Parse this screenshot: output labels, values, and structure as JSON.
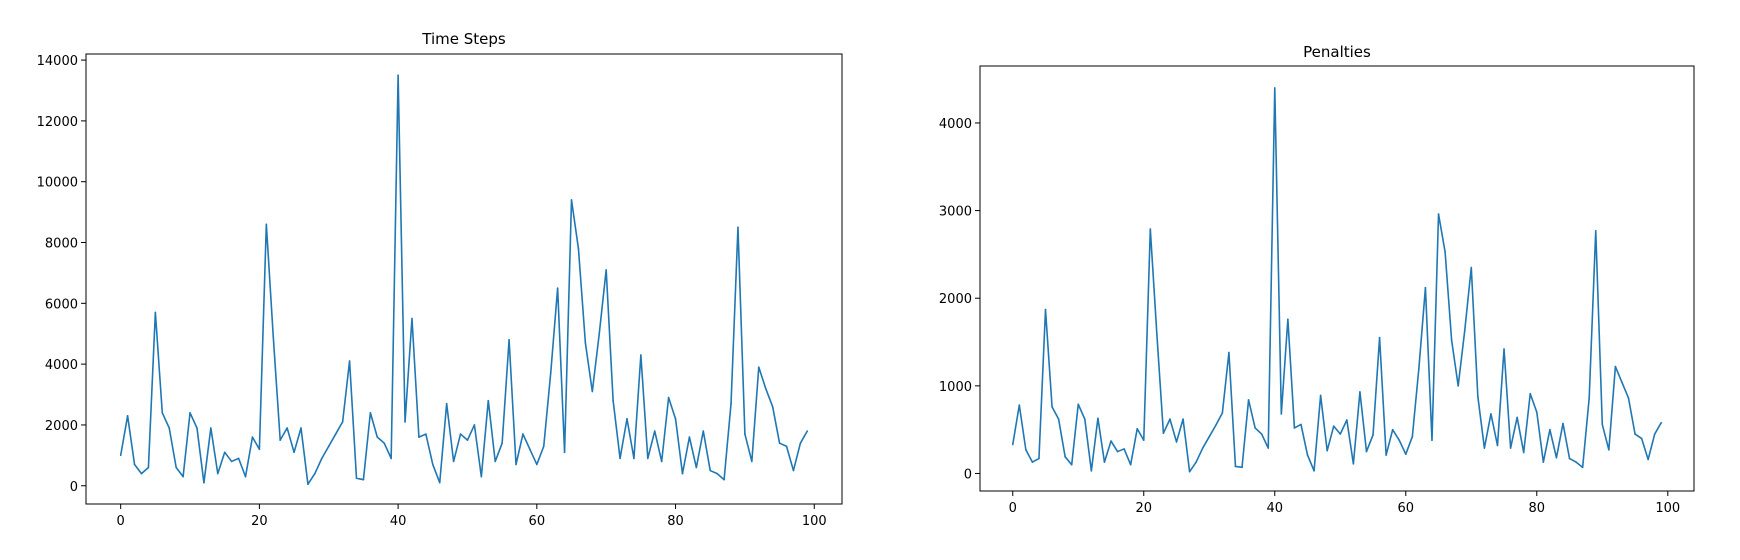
{
  "figure": {
    "background": "#ffffff"
  },
  "chart_data": [
    {
      "type": "line",
      "title": "Time Steps",
      "xlabel": "",
      "ylabel": "",
      "xlim": [
        -5,
        104
      ],
      "ylim": [
        -600,
        14200
      ],
      "xticks": [
        0,
        20,
        40,
        60,
        80,
        100
      ],
      "yticks": [
        0,
        2000,
        4000,
        6000,
        8000,
        10000,
        12000,
        14000
      ],
      "grid": false,
      "color": "#1f77b4",
      "series": [
        {
          "x": [
            0,
            1,
            2,
            3,
            4,
            5,
            6,
            7,
            8,
            9,
            10,
            11,
            12,
            13,
            14,
            15,
            16,
            17,
            18,
            19,
            20,
            21,
            22,
            23,
            24,
            25,
            26,
            27,
            28,
            29,
            30,
            31,
            32,
            33,
            34,
            35,
            36,
            37,
            38,
            39,
            40,
            41,
            42,
            43,
            44,
            45,
            46,
            47,
            48,
            49,
            50,
            51,
            52,
            53,
            54,
            55,
            56,
            57,
            58,
            59,
            60,
            61,
            62,
            63,
            64,
            65,
            66,
            67,
            68,
            69,
            70,
            71,
            72,
            73,
            74,
            75,
            76,
            77,
            78,
            79,
            80,
            81,
            82,
            83,
            84,
            85,
            86,
            87,
            88,
            89,
            90,
            91,
            92,
            93,
            94,
            95,
            96,
            97,
            98,
            99
          ],
          "values": [
            1000,
            2300,
            700,
            400,
            600,
            5700,
            2400,
            1900,
            600,
            300,
            2400,
            1900,
            100,
            1900,
            400,
            1100,
            800,
            900,
            300,
            1600,
            1200,
            8600,
            4900,
            1500,
            1900,
            1100,
            1900,
            50,
            400,
            900,
            1300,
            1700,
            2100,
            4100,
            250,
            200,
            2400,
            1600,
            1400,
            900,
            13500,
            2100,
            5500,
            1600,
            1700,
            700,
            100,
            2700,
            800,
            1700,
            1500,
            2000,
            300,
            2800,
            800,
            1400,
            4800,
            700,
            1700,
            1200,
            700,
            1300,
            3700,
            6500,
            1100,
            9400,
            7800,
            4700,
            3100,
            5000,
            7100,
            2800,
            900,
            2200,
            900,
            4300,
            900,
            1800,
            800,
            2900,
            2200,
            400,
            1600,
            600,
            1800,
            500,
            400,
            200,
            2700,
            8500,
            1700,
            800,
            3900,
            3200,
            2600,
            1400,
            1300,
            500,
            1400,
            1800
          ]
        }
      ]
    },
    {
      "type": "line",
      "title": "Penalties",
      "xlabel": "",
      "ylabel": "",
      "xlim": [
        -5,
        104
      ],
      "ylim": [
        -200,
        4650
      ],
      "xticks": [
        0,
        20,
        40,
        60,
        80,
        100
      ],
      "yticks": [
        0,
        1000,
        2000,
        3000,
        4000
      ],
      "grid": false,
      "color": "#1f77b4",
      "series": [
        {
          "x": [
            0,
            1,
            2,
            3,
            4,
            5,
            6,
            7,
            8,
            9,
            10,
            11,
            12,
            13,
            14,
            15,
            16,
            17,
            18,
            19,
            20,
            21,
            22,
            23,
            24,
            25,
            26,
            27,
            28,
            29,
            30,
            31,
            32,
            33,
            34,
            35,
            36,
            37,
            38,
            39,
            40,
            41,
            42,
            43,
            44,
            45,
            46,
            47,
            48,
            49,
            50,
            51,
            52,
            53,
            54,
            55,
            56,
            57,
            58,
            59,
            60,
            61,
            62,
            63,
            64,
            65,
            66,
            67,
            68,
            69,
            70,
            71,
            72,
            73,
            74,
            75,
            76,
            77,
            78,
            79,
            80,
            81,
            82,
            83,
            84,
            85,
            86,
            87,
            88,
            89,
            90,
            91,
            92,
            93,
            94,
            95,
            96,
            97,
            98,
            99
          ],
          "values": [
            330,
            780,
            270,
            130,
            170,
            1870,
            760,
            620,
            190,
            100,
            790,
            620,
            30,
            630,
            130,
            370,
            250,
            280,
            100,
            510,
            380,
            2790,
            1590,
            460,
            620,
            360,
            620,
            20,
            130,
            290,
            420,
            550,
            690,
            1380,
            80,
            70,
            840,
            520,
            450,
            290,
            4400,
            680,
            1760,
            520,
            560,
            210,
            30,
            890,
            260,
            540,
            450,
            610,
            110,
            930,
            250,
            440,
            1550,
            210,
            500,
            380,
            220,
            420,
            1200,
            2120,
            380,
            2960,
            2530,
            1520,
            1000,
            1630,
            2350,
            880,
            290,
            680,
            320,
            1420,
            290,
            640,
            240,
            910,
            700,
            130,
            500,
            180,
            570,
            170,
            130,
            70,
            860,
            2770,
            560,
            270,
            1220,
            1040,
            860,
            450,
            400,
            160,
            450,
            580
          ]
        }
      ]
    }
  ]
}
